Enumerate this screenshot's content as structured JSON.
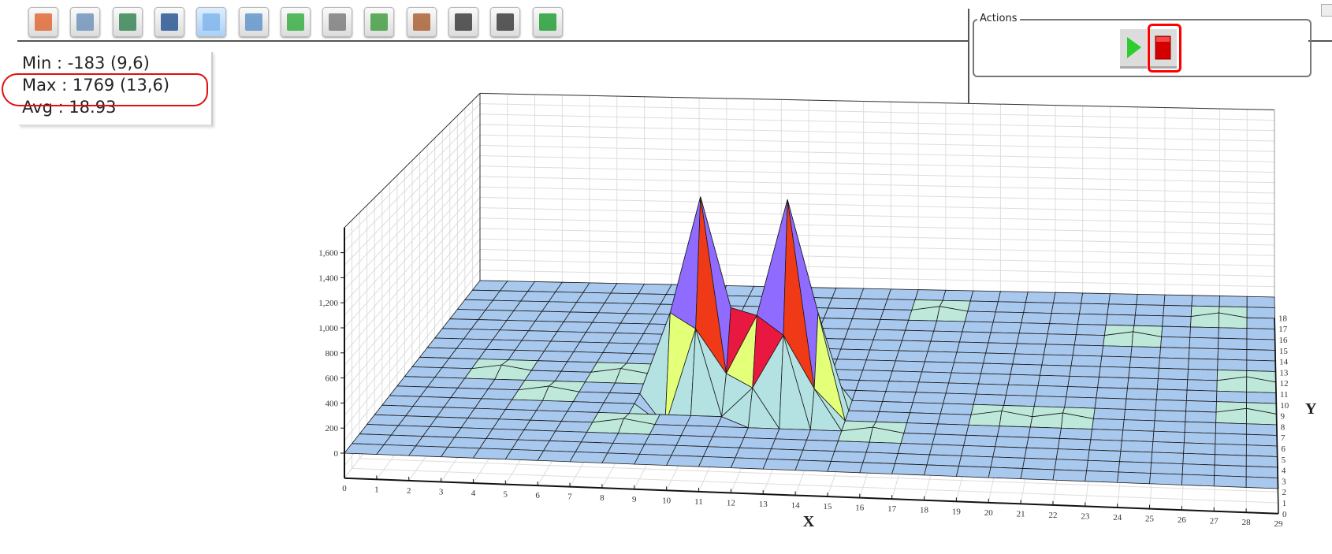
{
  "toolbar": {
    "buttons": [
      {
        "icon": "export-image-icon",
        "color": "#e0602a"
      },
      {
        "icon": "formula-icon",
        "color": "#6a8fb8"
      },
      {
        "icon": "text-document-icon",
        "color": "#2f7f4f"
      },
      {
        "icon": "gl-icon",
        "color": "#1f4f8f"
      },
      {
        "icon": "grid-icon",
        "color": "#7fb4ea",
        "active": true
      },
      {
        "icon": "list-icon",
        "color": "#5a8fc8"
      },
      {
        "icon": "refresh-icon",
        "color": "#2eaa3a"
      },
      {
        "icon": "camera-icon",
        "color": "#777777"
      },
      {
        "icon": "import-icon",
        "color": "#3a9a3a"
      },
      {
        "icon": "clipboard-icon",
        "color": "#a85a2a"
      },
      {
        "icon": "zoom-in-icon",
        "color": "#333333"
      },
      {
        "icon": "zoom-out-icon",
        "color": "#333333"
      },
      {
        "icon": "fit-view-icon",
        "color": "#1a9a2a"
      }
    ]
  },
  "stats": {
    "min": "Min : -183 (9,6)",
    "max": "Max : 1769 (13,6)",
    "avg": "Avg : 18.93"
  },
  "actions": {
    "legend": "Actions",
    "play_icon": "play-icon",
    "stop_icon": "stop-icon",
    "play_color": "#2ecc2e",
    "stop_color": "#d40000"
  },
  "chart_data": {
    "type": "surface3d",
    "xlabel": "X",
    "ylabel": "Y",
    "x_ticks": [
      0,
      1,
      2,
      3,
      4,
      5,
      6,
      7,
      8,
      9,
      10,
      11,
      12,
      13,
      14,
      15,
      16,
      17,
      18,
      19,
      20,
      21,
      22,
      23,
      24,
      25,
      26,
      27,
      28,
      29
    ],
    "y_ticks": [
      0,
      1,
      2,
      3,
      4,
      5,
      6,
      7,
      8,
      9,
      10,
      11,
      12,
      13,
      14,
      15,
      16,
      17,
      18
    ],
    "z_ticks": [
      "0",
      "200",
      "400",
      "600",
      "800",
      "1,000",
      "1,200",
      "1,400",
      "1,600"
    ],
    "xlim": [
      0,
      29
    ],
    "ylim": [
      0,
      18
    ],
    "zlim": [
      -200,
      1800
    ],
    "default_value": 0,
    "points": [
      [
        10,
        7,
        1700
      ],
      [
        9,
        7,
        700
      ],
      [
        11,
        7,
        760
      ],
      [
        10,
        8,
        720
      ],
      [
        10,
        6,
        650
      ],
      [
        9,
        8,
        250
      ],
      [
        11,
        8,
        300
      ],
      [
        11,
        6,
        280
      ],
      [
        9,
        6,
        -183
      ],
      [
        13,
        6,
        1769
      ],
      [
        12,
        6,
        780
      ],
      [
        14,
        6,
        820
      ],
      [
        13,
        7,
        800
      ],
      [
        13,
        5,
        700
      ],
      [
        12,
        7,
        300
      ],
      [
        14,
        7,
        320
      ],
      [
        12,
        5,
        250
      ],
      [
        14,
        5,
        260
      ],
      [
        3,
        9,
        40
      ],
      [
        5,
        7,
        40
      ],
      [
        7,
        9,
        40
      ],
      [
        17,
        16,
        40
      ],
      [
        20,
        6,
        40
      ],
      [
        22,
        6,
        40
      ],
      [
        24,
        14,
        40
      ],
      [
        27,
        16,
        40
      ],
      [
        28,
        10,
        40
      ],
      [
        28,
        7,
        40
      ],
      [
        16,
        4,
        40
      ],
      [
        8,
        4,
        40
      ]
    ],
    "colors": {
      "base": "#a8c8ee",
      "low": "#bde8da",
      "mid": "#b4e2e2",
      "yellow": "#e4ff78",
      "orange": "#ffa800",
      "red": "#f03a17",
      "crimson": "#e81840",
      "purple": "#8f6cff"
    },
    "grid": true
  }
}
